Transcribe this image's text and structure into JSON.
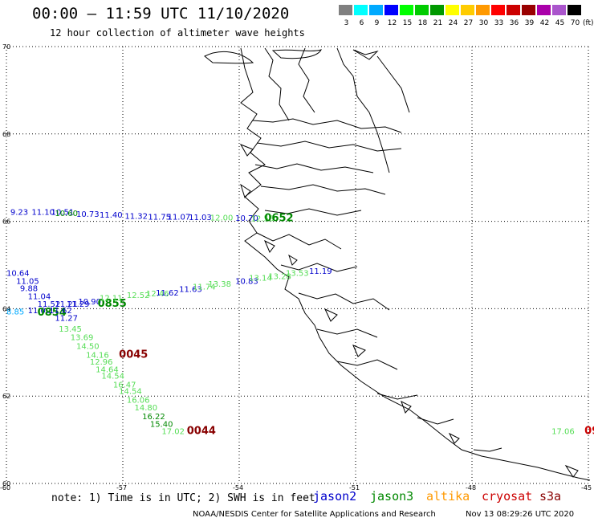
{
  "header": {
    "title": "00:00 – 11:59 UTC 11/10/2020",
    "subtitle": "12 hour collection of altimeter wave heights"
  },
  "colorbar": {
    "swatches": [
      "#808080",
      "#00ffff",
      "#00aaff",
      "#0000ff",
      "#00ff00",
      "#00cc00",
      "#009900",
      "#ffff00",
      "#ffcc00",
      "#ff9900",
      "#ff0000",
      "#cc0000",
      "#990000",
      "#aa00aa",
      "#aa55cc",
      "#000000"
    ],
    "labels": [
      "3",
      "6",
      "9",
      "12",
      "15",
      "18",
      "21",
      "24",
      "27",
      "30",
      "33",
      "36",
      "39",
      "42",
      "45",
      "70"
    ],
    "unit": "(ft)"
  },
  "axes": {
    "lat_ticks": [
      "70",
      "68",
      "66",
      "64",
      "62",
      "60"
    ],
    "lon_ticks": [
      "-60",
      "-57",
      "-54",
      "-51",
      "-48",
      "-45"
    ]
  },
  "colors": {
    "jason2": "#0000cc",
    "jason3": "#008800",
    "jason3_light": "#55dd55",
    "altika": "#ff9900",
    "cryosat": "#cc0000",
    "s3a": "#880000"
  },
  "wave_labels": [
    {
      "text": "9.23",
      "lon": -59.9,
      "lat": 66.15,
      "color": "#0000cc"
    },
    {
      "text": "11.10",
      "lon": -59.35,
      "lat": 66.15,
      "color": "#0000cc"
    },
    {
      "text": "10.51",
      "lon": -58.85,
      "lat": 66.15,
      "color": "#0000cc"
    },
    {
      "text": "10.60",
      "lon": -58.75,
      "lat": 66.12,
      "color": "#008800"
    },
    {
      "text": "10.73",
      "lon": -58.2,
      "lat": 66.1,
      "color": "#0000cc"
    },
    {
      "text": "11.40",
      "lon": -57.6,
      "lat": 66.08,
      "color": "#0000cc"
    },
    {
      "text": "11.32",
      "lon": -56.95,
      "lat": 66.06,
      "color": "#0000cc"
    },
    {
      "text": "11.75",
      "lon": -56.35,
      "lat": 66.04,
      "color": "#0000cc"
    },
    {
      "text": "11.07",
      "lon": -55.85,
      "lat": 66.04,
      "color": "#0000cc"
    },
    {
      "text": "11.03",
      "lon": -55.3,
      "lat": 66.03,
      "color": "#0000cc"
    },
    {
      "text": "12.00",
      "lon": -54.75,
      "lat": 66.02,
      "color": "#55dd55"
    },
    {
      "text": "10.70",
      "lon": -54.1,
      "lat": 66.01,
      "color": "#0000cc"
    },
    {
      "text": "12.56",
      "lon": -53.7,
      "lat": 66.0,
      "color": "#55dd55"
    },
    {
      "text": "0652",
      "lon": -53.35,
      "lat": 66.0,
      "color": "#008800",
      "big": true
    },
    {
      "text": "10.64",
      "lon": -60.0,
      "lat": 64.75,
      "color": "#0000cc"
    },
    {
      "text": "11.05",
      "lon": -59.75,
      "lat": 64.57,
      "color": "#0000cc"
    },
    {
      "text": "9.88",
      "lon": -59.65,
      "lat": 64.4,
      "color": "#0000cc"
    },
    {
      "text": "11.04",
      "lon": -59.45,
      "lat": 64.22,
      "color": "#0000cc"
    },
    {
      "text": "11.52",
      "lon": -59.2,
      "lat": 64.04,
      "color": "#0000cc"
    },
    {
      "text": "11.21",
      "lon": -58.75,
      "lat": 64.04,
      "color": "#0000cc"
    },
    {
      "text": "11.29",
      "lon": -58.45,
      "lat": 64.04,
      "color": "#0000cc"
    },
    {
      "text": "10.90",
      "lon": -58.15,
      "lat": 64.1,
      "color": "#0000cc"
    },
    {
      "text": "0855",
      "lon": -57.65,
      "lat": 64.04,
      "color": "#008800",
      "big": true
    },
    {
      "text": "12.11",
      "lon": -57.6,
      "lat": 64.18,
      "color": "#55dd55"
    },
    {
      "text": "12.52",
      "lon": -56.9,
      "lat": 64.25,
      "color": "#55dd55"
    },
    {
      "text": "12.46",
      "lon": -56.4,
      "lat": 64.28,
      "color": "#55dd55"
    },
    {
      "text": "11.62",
      "lon": -56.15,
      "lat": 64.3,
      "color": "#0000cc"
    },
    {
      "text": "11.63",
      "lon": -55.55,
      "lat": 64.38,
      "color": "#0000cc"
    },
    {
      "text": "11.74",
      "lon": -55.2,
      "lat": 64.44,
      "color": "#55dd55"
    },
    {
      "text": "13.38",
      "lon": -54.8,
      "lat": 64.5,
      "color": "#55dd55"
    },
    {
      "text": "10.83",
      "lon": -54.1,
      "lat": 64.57,
      "color": "#0000cc"
    },
    {
      "text": "13.14",
      "lon": -53.75,
      "lat": 64.64,
      "color": "#55dd55"
    },
    {
      "text": "13.28",
      "lon": -53.25,
      "lat": 64.68,
      "color": "#55dd55"
    },
    {
      "text": "13.53",
      "lon": -52.8,
      "lat": 64.75,
      "color": "#55dd55"
    },
    {
      "text": "11.19",
      "lon": -52.2,
      "lat": 64.8,
      "color": "#0000cc"
    },
    {
      "text": "8.85",
      "lon": -60.0,
      "lat": 63.87,
      "color": "#00aaff"
    },
    {
      "text": "11.00",
      "lon": -59.45,
      "lat": 63.9,
      "color": "#0000cc"
    },
    {
      "text": "0854",
      "lon": -59.2,
      "lat": 63.84,
      "color": "#008800",
      "big": true
    },
    {
      "text": "11.62",
      "lon": -58.9,
      "lat": 63.9,
      "color": "#0000cc"
    },
    {
      "text": "11.27",
      "lon": -58.75,
      "lat": 63.72,
      "color": "#0000cc"
    },
    {
      "text": "13.45",
      "lon": -58.65,
      "lat": 63.47,
      "color": "#55dd55"
    },
    {
      "text": "13.69",
      "lon": -58.35,
      "lat": 63.28,
      "color": "#55dd55"
    },
    {
      "text": "14.50",
      "lon": -58.2,
      "lat": 63.08,
      "color": "#55dd55"
    },
    {
      "text": "14.16",
      "lon": -57.95,
      "lat": 62.88,
      "color": "#55dd55"
    },
    {
      "text": "0045",
      "lon": -57.1,
      "lat": 62.88,
      "color": "#880000",
      "big": true
    },
    {
      "text": "12.96",
      "lon": -57.85,
      "lat": 62.72,
      "color": "#55dd55"
    },
    {
      "text": "14.64",
      "lon": -57.7,
      "lat": 62.55,
      "color": "#55dd55"
    },
    {
      "text": "14.54",
      "lon": -57.55,
      "lat": 62.4,
      "color": "#55dd55"
    },
    {
      "text": "16.47",
      "lon": -57.25,
      "lat": 62.2,
      "color": "#55dd55"
    },
    {
      "text": "14.54",
      "lon": -57.1,
      "lat": 62.05,
      "color": "#55dd55"
    },
    {
      "text": "16.06",
      "lon": -56.9,
      "lat": 61.85,
      "color": "#55dd55"
    },
    {
      "text": "14.80",
      "lon": -56.7,
      "lat": 61.67,
      "color": "#55dd55"
    },
    {
      "text": "16.22",
      "lon": -56.5,
      "lat": 61.47,
      "color": "#008800"
    },
    {
      "text": "15.40",
      "lon": -56.3,
      "lat": 61.3,
      "color": "#008800"
    },
    {
      "text": "17.02",
      "lon": -56.0,
      "lat": 61.13,
      "color": "#55dd55"
    },
    {
      "text": "0044",
      "lon": -55.35,
      "lat": 61.13,
      "color": "#880000",
      "big": true
    },
    {
      "text": "17.06",
      "lon": -45.95,
      "lat": 61.13,
      "color": "#55dd55"
    },
    {
      "text": "09",
      "lon": -45.1,
      "lat": 61.13,
      "color": "#cc0000",
      "big": true
    }
  ],
  "footer": {
    "note": "note: 1) Time is in UTC; 2) SWH is in feet",
    "satellites": [
      {
        "name": "jason2",
        "color": "#0000cc"
      },
      {
        "name": "jason3",
        "color": "#008800"
      },
      {
        "name": "altika",
        "color": "#ff9900"
      },
      {
        "name": "cryosat",
        "color": "#cc0000"
      },
      {
        "name": "s3a",
        "color": "#880000"
      }
    ],
    "credit": "NOAA/NESDIS Center for Satellite Applications and Research",
    "timestamp": "Nov 13 08:29:26 UTC 2020"
  }
}
